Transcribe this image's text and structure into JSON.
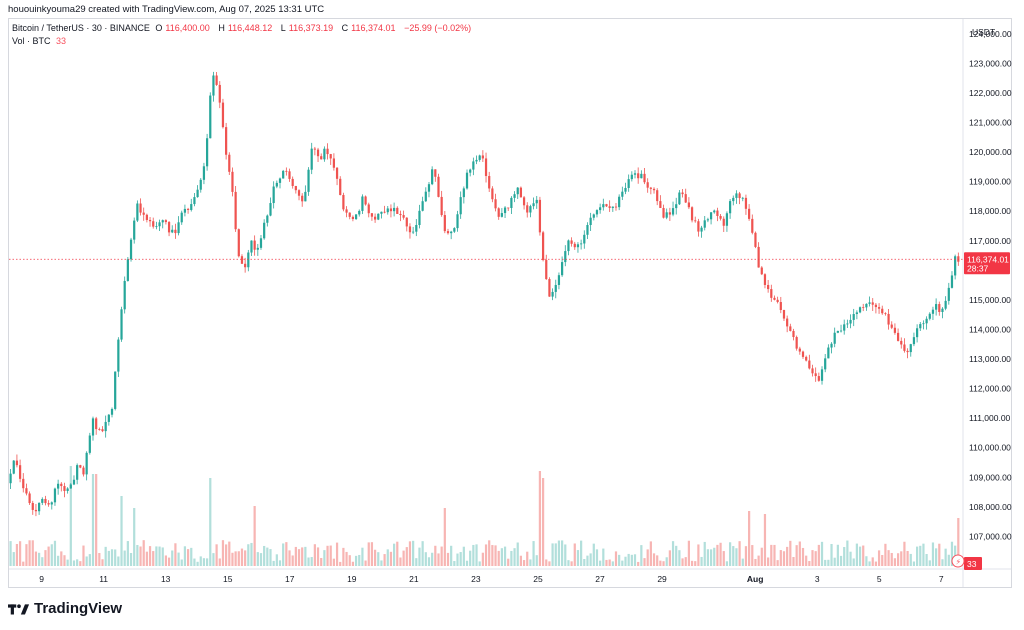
{
  "header": {
    "caption": "hououinkyouma29 created with TradingView.com, Aug 07, 2025 13:31 UTC"
  },
  "legend": {
    "symbol": "Bitcoin / TetherUS · 30 · BINANCE",
    "open_label": "O",
    "open": "116,400.00",
    "high_label": "H",
    "high": "116,448.12",
    "low_label": "L",
    "low": "116,373.19",
    "close_label": "C",
    "close": "116,374.01",
    "change": "−25.99 (−0.02%)",
    "vol_label": "Vol · BTC",
    "vol_value": "33"
  },
  "footer": {
    "brand": "TradingView"
  },
  "colors": {
    "up": "#26a69a",
    "down": "#ef5350",
    "up_vol": "#b2dfdb",
    "down_vol": "#f7b5b3",
    "last_price": "#f23645"
  },
  "chart_data": {
    "type": "candlestick",
    "currency_label": "USDT",
    "ylim": [
      106000,
      124500
    ],
    "y_ticks": [
      "124,000.00",
      "123,000.00",
      "122,000.00",
      "121,000.00",
      "120,000.00",
      "119,000.00",
      "118,000.00",
      "117,000.00",
      "115,000.00",
      "114,000.00",
      "113,000.00",
      "112,000.00",
      "111,000.00",
      "110,000.00",
      "109,000.00",
      "108,000.00",
      "107,000.00"
    ],
    "y_tick_values": [
      124000,
      123000,
      122000,
      121000,
      120000,
      119000,
      118000,
      117000,
      115000,
      114000,
      113000,
      112000,
      111000,
      110000,
      109000,
      108000,
      107000
    ],
    "x_ticks": [
      "9",
      "11",
      "13",
      "15",
      "17",
      "19",
      "21",
      "23",
      "25",
      "27",
      "29",
      "Aug",
      "3",
      "5",
      "7"
    ],
    "x_tick_days": [
      9,
      11,
      13,
      15,
      17,
      19,
      21,
      23,
      25,
      27,
      29,
      32,
      34,
      36,
      38
    ],
    "x_range_days": [
      7.95,
      38.7
    ],
    "last_price": 116374.01,
    "last_price_label": "116,374.01",
    "countdown": "28:37",
    "last_volume": "33",
    "price_path": [
      [
        7.95,
        108800
      ],
      [
        8.2,
        109600
      ],
      [
        8.5,
        108600
      ],
      [
        8.8,
        107700
      ],
      [
        9.0,
        108300
      ],
      [
        9.3,
        108000
      ],
      [
        9.6,
        108900
      ],
      [
        9.9,
        108500
      ],
      [
        10.2,
        109300
      ],
      [
        10.4,
        109200
      ],
      [
        10.7,
        111000
      ],
      [
        10.9,
        110500
      ],
      [
        11.1,
        110800
      ],
      [
        11.3,
        111200
      ],
      [
        11.6,
        114400
      ],
      [
        11.8,
        116300
      ],
      [
        11.95,
        117200
      ],
      [
        12.1,
        118200
      ],
      [
        12.4,
        117800
      ],
      [
        12.7,
        117500
      ],
      [
        13.0,
        117600
      ],
      [
        13.3,
        117200
      ],
      [
        13.6,
        117900
      ],
      [
        13.9,
        118300
      ],
      [
        14.2,
        119000
      ],
      [
        14.4,
        120500
      ],
      [
        14.55,
        122900
      ],
      [
        14.8,
        121600
      ],
      [
        15.0,
        119800
      ],
      [
        15.2,
        118700
      ],
      [
        15.4,
        116400
      ],
      [
        15.6,
        116000
      ],
      [
        15.8,
        117000
      ],
      [
        16.0,
        116600
      ],
      [
        16.3,
        117800
      ],
      [
        16.6,
        119000
      ],
      [
        16.9,
        119500
      ],
      [
        17.2,
        118800
      ],
      [
        17.5,
        118200
      ],
      [
        17.8,
        120400
      ],
      [
        18.0,
        119700
      ],
      [
        18.2,
        120200
      ],
      [
        18.5,
        119400
      ],
      [
        18.8,
        118000
      ],
      [
        19.1,
        117600
      ],
      [
        19.4,
        118400
      ],
      [
        19.8,
        117700
      ],
      [
        20.2,
        118200
      ],
      [
        20.6,
        117900
      ],
      [
        21.0,
        117100
      ],
      [
        21.4,
        118600
      ],
      [
        21.7,
        119500
      ],
      [
        22.0,
        117400
      ],
      [
        22.3,
        117200
      ],
      [
        22.6,
        118700
      ],
      [
        22.9,
        119600
      ],
      [
        23.2,
        120000
      ],
      [
        23.5,
        118800
      ],
      [
        23.8,
        117800
      ],
      [
        24.1,
        118200
      ],
      [
        24.4,
        118900
      ],
      [
        24.7,
        117900
      ],
      [
        25.0,
        118600
      ],
      [
        25.2,
        116400
      ],
      [
        25.4,
        115200
      ],
      [
        25.7,
        115600
      ],
      [
        26.0,
        117000
      ],
      [
        26.3,
        116700
      ],
      [
        26.6,
        117400
      ],
      [
        27.0,
        118200
      ],
      [
        27.4,
        118000
      ],
      [
        27.8,
        118600
      ],
      [
        28.1,
        119300
      ],
      [
        28.4,
        119200
      ],
      [
        28.8,
        118600
      ],
      [
        29.1,
        117800
      ],
      [
        29.4,
        118100
      ],
      [
        29.7,
        118700
      ],
      [
        30.0,
        117800
      ],
      [
        30.3,
        117300
      ],
      [
        30.7,
        118200
      ],
      [
        31.0,
        117500
      ],
      [
        31.3,
        118400
      ],
      [
        31.6,
        118600
      ],
      [
        31.8,
        117900
      ],
      [
        32.0,
        117200
      ],
      [
        32.2,
        116000
      ],
      [
        32.5,
        115200
      ],
      [
        32.8,
        114800
      ],
      [
        33.1,
        114100
      ],
      [
        33.4,
        113400
      ],
      [
        33.7,
        112900
      ],
      [
        33.9,
        112500
      ],
      [
        34.1,
        112200
      ],
      [
        34.3,
        113000
      ],
      [
        34.6,
        113800
      ],
      [
        35.0,
        114200
      ],
      [
        35.4,
        114600
      ],
      [
        35.8,
        115000
      ],
      [
        36.1,
        114700
      ],
      [
        36.4,
        114200
      ],
      [
        36.7,
        113600
      ],
      [
        36.9,
        113100
      ],
      [
        37.2,
        113800
      ],
      [
        37.5,
        114300
      ],
      [
        37.8,
        114800
      ],
      [
        38.1,
        114600
      ],
      [
        38.35,
        115500
      ],
      [
        38.5,
        116600
      ],
      [
        38.6,
        116374
      ]
    ],
    "volume_spikes": [
      [
        9.95,
        100
      ],
      [
        10.7,
        92
      ],
      [
        11.55,
        70
      ],
      [
        11.95,
        58
      ],
      [
        14.4,
        88
      ],
      [
        15.9,
        60
      ],
      [
        22.0,
        58
      ],
      [
        25.05,
        95
      ],
      [
        25.2,
        88
      ],
      [
        31.8,
        55
      ],
      [
        32.3,
        52
      ],
      [
        38.6,
        48
      ]
    ]
  }
}
